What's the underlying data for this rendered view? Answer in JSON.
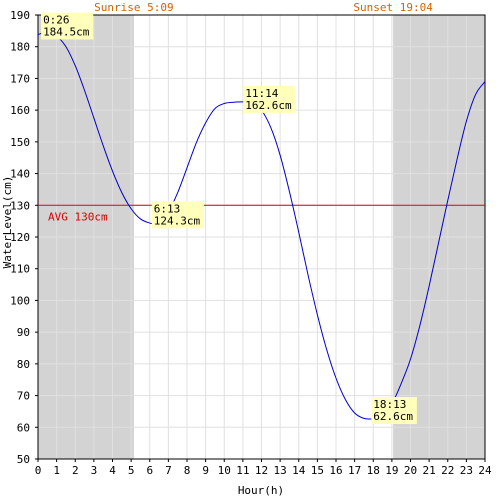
{
  "chart_data": {
    "type": "line",
    "title": "",
    "xlabel": "Hour(h)",
    "ylabel": "WaterLevel(cm)",
    "xlim": [
      0,
      24
    ],
    "ylim": [
      50,
      190
    ],
    "x_ticks": [
      "0",
      "1",
      "2",
      "3",
      "4",
      "5",
      "6",
      "7",
      "8",
      "9",
      "10",
      "11",
      "12",
      "13",
      "14",
      "15",
      "16",
      "17",
      "18",
      "19",
      "20",
      "21",
      "22",
      "23",
      "24"
    ],
    "y_ticks": [
      "50",
      "60",
      "70",
      "80",
      "90",
      "100",
      "110",
      "120",
      "130",
      "140",
      "150",
      "160",
      "170",
      "180",
      "190"
    ],
    "grid": true,
    "sunrise_label": "Sunrise 5:09",
    "sunset_label": "Sunset 19:04",
    "sunrise_hour": 5.15,
    "sunset_hour": 19.067,
    "average": {
      "value": 130,
      "label": "AVG 130cm"
    },
    "series": [
      {
        "x": [
          0,
          0.433,
          1,
          1.5,
          2,
          2.5,
          3,
          3.5,
          4,
          4.5,
          5,
          5.5,
          6,
          6.217,
          6.5,
          7,
          7.5,
          8,
          8.5,
          9,
          9.5,
          10,
          10.5,
          11,
          11.233,
          11.5,
          12,
          12.5,
          13,
          13.5,
          14,
          14.5,
          15,
          15.5,
          16,
          16.5,
          17,
          17.5,
          18,
          18.217,
          18.5,
          19,
          19.5,
          20,
          20.5,
          21,
          21.5,
          22,
          22.5,
          23,
          23.5,
          24
        ],
        "values": [
          183.8,
          184.5,
          183.3,
          180.0,
          174.0,
          166.2,
          157.5,
          148.8,
          140.8,
          134.0,
          128.9,
          125.7,
          124.4,
          124.3,
          124.7,
          127.9,
          134.0,
          141.8,
          149.7,
          156.0,
          160.5,
          162.1,
          162.5,
          162.6,
          162.6,
          162.5,
          160.0,
          154.5,
          145.8,
          134.3,
          121.5,
          108.0,
          95.5,
          84.5,
          75.5,
          68.8,
          64.5,
          62.8,
          62.6,
          62.6,
          62.8,
          67.3,
          73.8,
          81.5,
          92.0,
          104.5,
          118.0,
          131.5,
          144.5,
          156.5,
          165.0,
          169.0
        ]
      }
    ],
    "annotations": [
      {
        "time": "0:26",
        "value": "184.5cm",
        "x": 0.433,
        "y": 184.5
      },
      {
        "time": "6:13",
        "value": "124.3cm",
        "x": 6.217,
        "y": 124.3
      },
      {
        "time": "11:14",
        "value": "162.6cm",
        "x": 11.233,
        "y": 162.6
      },
      {
        "time": "18:13",
        "value": "62.6cm",
        "x": 18.217,
        "y": 62.6
      }
    ],
    "colors": {
      "line": "#0000cc",
      "average": "#dd0000",
      "night": "#d3d3d3",
      "grid": "#e0e0e0",
      "sun_text": "#cc6600",
      "annotation_bg": "#ffffbb"
    }
  }
}
